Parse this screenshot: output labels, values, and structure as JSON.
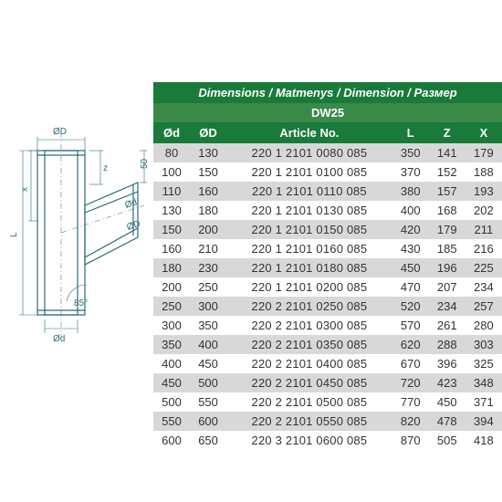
{
  "title": "Dimensions / Matmenys / Dimension / Размер",
  "subtitle": "DW25",
  "columns": [
    "Ød",
    "ØD",
    "Article No.",
    "L",
    "Z",
    "X"
  ],
  "rows": [
    [
      "80",
      "130",
      "220 1 2101 0080 085",
      "350",
      "141",
      "179"
    ],
    [
      "100",
      "150",
      "220 1 2101 0100 085",
      "370",
      "152",
      "188"
    ],
    [
      "110",
      "160",
      "220 1 2101 0110 085",
      "380",
      "157",
      "193"
    ],
    [
      "130",
      "180",
      "220 1 2101 0130 085",
      "400",
      "168",
      "202"
    ],
    [
      "150",
      "200",
      "220 1 2101 0150 085",
      "420",
      "179",
      "211"
    ],
    [
      "160",
      "210",
      "220 1 2101 0160 085",
      "430",
      "185",
      "216"
    ],
    [
      "180",
      "230",
      "220 1 2101 0180 085",
      "450",
      "196",
      "225"
    ],
    [
      "200",
      "250",
      "220 1 2101 0200 085",
      "470",
      "207",
      "234"
    ],
    [
      "250",
      "300",
      "220 2 2101 0250 085",
      "520",
      "234",
      "257"
    ],
    [
      "300",
      "350",
      "220 2 2101 0300 085",
      "570",
      "261",
      "280"
    ],
    [
      "350",
      "400",
      "220 2 2101 0350 085",
      "620",
      "288",
      "303"
    ],
    [
      "400",
      "450",
      "220 2 2101 0400 085",
      "670",
      "396",
      "325"
    ],
    [
      "450",
      "500",
      "220 2 2101 0450 085",
      "720",
      "423",
      "348"
    ],
    [
      "500",
      "550",
      "220 2 2101 0500 085",
      "770",
      "450",
      "371"
    ],
    [
      "550",
      "600",
      "220 2 2101 0550 085",
      "820",
      "478",
      "394"
    ],
    [
      "600",
      "650",
      "220 3 2101 0600 085",
      "870",
      "505",
      "418"
    ]
  ],
  "colors": {
    "header_bg": "#1a7a3a",
    "sub_bg": "#3a8a4a",
    "row_odd": "#d8d8d8",
    "row_even": "#ffffff",
    "text": "#333333",
    "header_text": "#ffffff",
    "diagram_stroke": "#2a6a7a"
  },
  "diagram_labels": {
    "D_top": "ØD",
    "z": "z",
    "fifty": "50",
    "x": "x",
    "d_side": "Ød",
    "D_side": "ØD",
    "L": "L",
    "angle": "85°",
    "d_bot": "Ød"
  }
}
